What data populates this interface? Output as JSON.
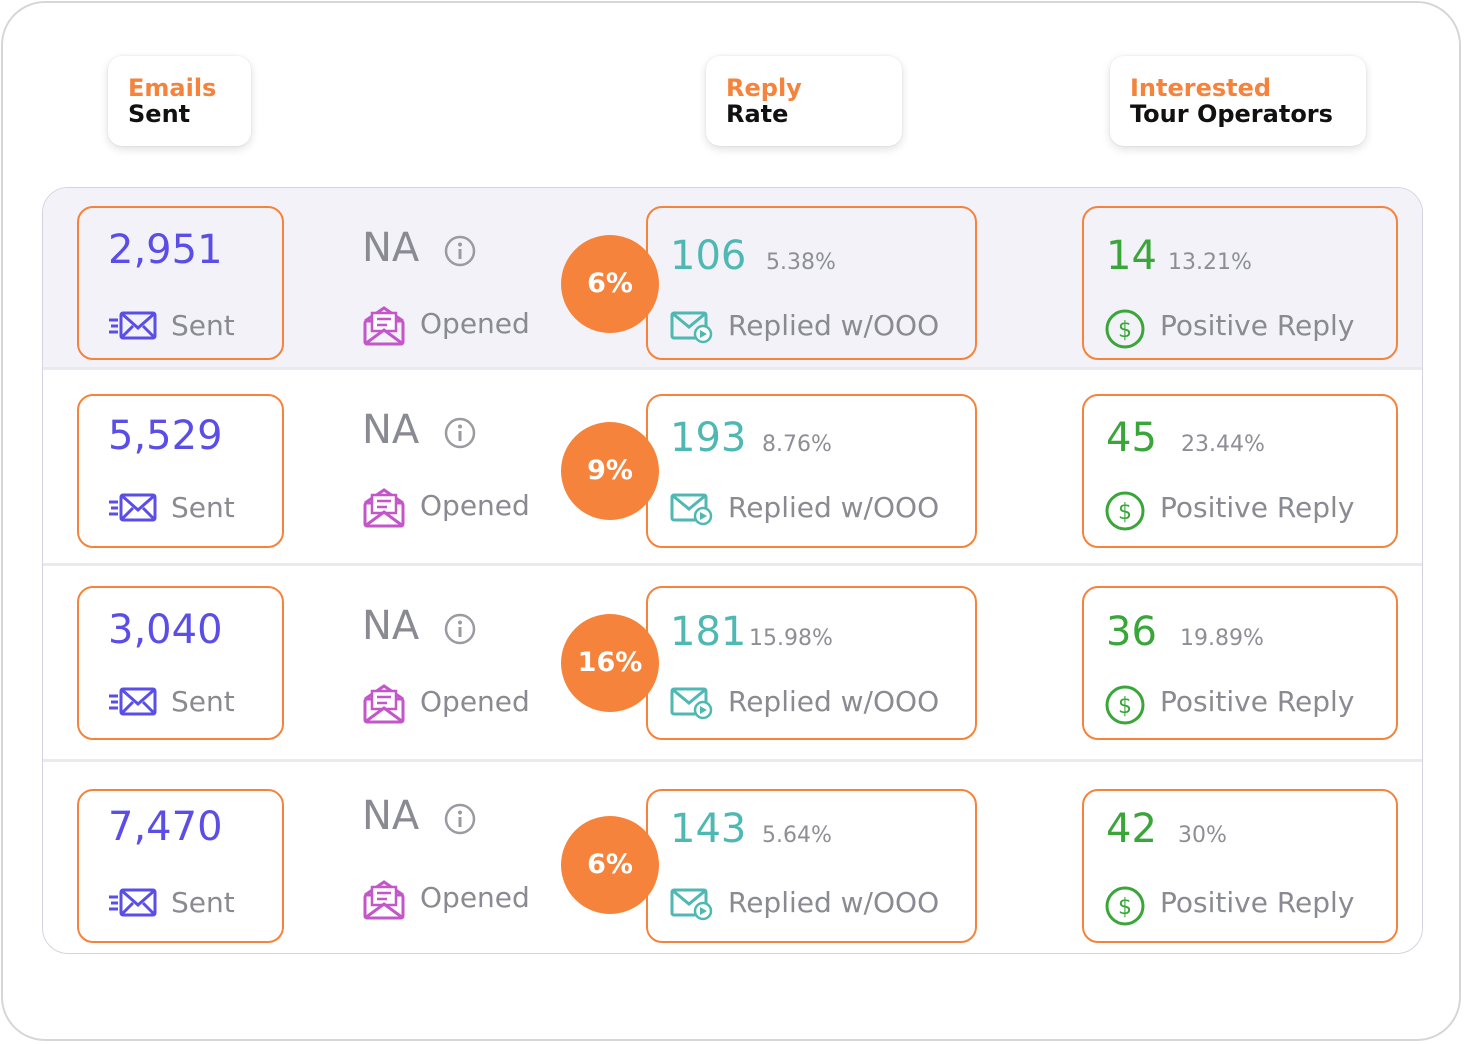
{
  "headers": {
    "emails": {
      "line1": "Emails",
      "line2": "Sent"
    },
    "reply": {
      "line1": "Reply",
      "line2": "Rate"
    },
    "interested": {
      "line1": "Interested",
      "line2": "Tour Operators"
    }
  },
  "labels": {
    "sent": "Sent",
    "opened": "Opened",
    "replied": "Replied w/OOO",
    "positive": "Positive Reply"
  },
  "rows": [
    {
      "sent": "2,951",
      "opened": "NA",
      "rate": "6%",
      "replied": "106",
      "replied_pct": "5.38%",
      "positive": "14",
      "positive_pct": "13.21%"
    },
    {
      "sent": "5,529",
      "opened": "NA",
      "rate": "9%",
      "replied": "193",
      "replied_pct": "8.76%",
      "positive": "45",
      "positive_pct": "23.44%"
    },
    {
      "sent": "3,040",
      "opened": "NA",
      "rate": "16%",
      "replied": "181",
      "replied_pct": "15.98%",
      "positive": "36",
      "positive_pct": "19.89%"
    },
    {
      "sent": "7,470",
      "opened": "NA",
      "rate": "6%",
      "replied": "143",
      "replied_pct": "5.64%",
      "positive": "42",
      "positive_pct": "30%"
    }
  ],
  "colors": {
    "accent": "#f5833b",
    "sent": "#5b4ee6",
    "opened": "#c356c9",
    "replied": "#4fb8b3",
    "positive": "#3aa63a"
  },
  "icons": {
    "sent": "send-mail-icon",
    "opened": "open-envelope-icon",
    "info": "info-icon",
    "replied": "reply-mail-icon",
    "positive": "dollar-circle-icon"
  }
}
